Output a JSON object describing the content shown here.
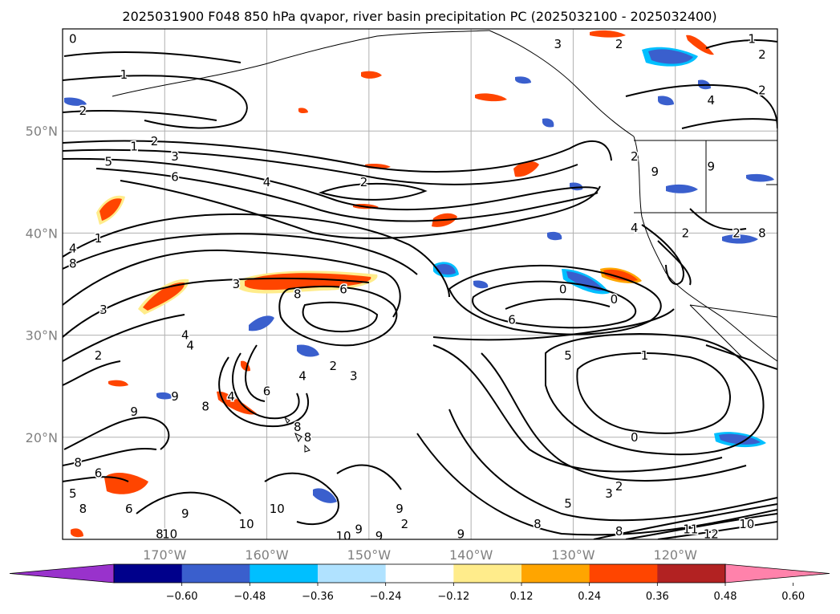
{
  "title": "2025031900 F048 850 hPa qvapor, river basin precipitation PC (2025032100 - 2025032400)",
  "map": {
    "lon_range": [
      -180,
      -110
    ],
    "lat_range": [
      10,
      60
    ],
    "lon_ticks": [
      {
        "value": -170,
        "label": "170°W"
      },
      {
        "value": -160,
        "label": "160°W"
      },
      {
        "value": -150,
        "label": "150°W"
      },
      {
        "value": -140,
        "label": "140°W"
      },
      {
        "value": -130,
        "label": "130°W"
      },
      {
        "value": -120,
        "label": "120°W"
      }
    ],
    "lat_ticks": [
      {
        "value": 20,
        "label": "20°N"
      },
      {
        "value": 30,
        "label": "30°N"
      },
      {
        "value": 40,
        "label": "40°N"
      },
      {
        "value": 50,
        "label": "50°N"
      }
    ],
    "grid": true,
    "coastline_color": "#000000"
  },
  "colorbar": {
    "extend": "both",
    "colors": [
      "#9932cc",
      "#00008b",
      "#3a5fcd",
      "#00bfff",
      "#b0e2ff",
      "#ffffff",
      "#ffec8b",
      "#ffa500",
      "#ff4500",
      "#b22222",
      "#ff82ab"
    ],
    "ticks": [
      "−0.60",
      "−0.48",
      "−0.36",
      "−0.24",
      "−0.12",
      "0.12",
      "0.24",
      "0.36",
      "0.48",
      "0.60"
    ]
  },
  "contour_labels": [
    {
      "lon": -179,
      "lat": 59,
      "text": "0"
    },
    {
      "lon": -174,
      "lat": 55.5,
      "text": "1"
    },
    {
      "lon": -178,
      "lat": 52,
      "text": "2"
    },
    {
      "lon": -173,
      "lat": 48.5,
      "text": "1"
    },
    {
      "lon": -171,
      "lat": 49,
      "text": "2"
    },
    {
      "lon": -175.5,
      "lat": 47,
      "text": "5"
    },
    {
      "lon": -169,
      "lat": 47.5,
      "text": "3"
    },
    {
      "lon": -169,
      "lat": 45.5,
      "text": "6"
    },
    {
      "lon": -160,
      "lat": 45,
      "text": "4"
    },
    {
      "lon": -150.5,
      "lat": 45,
      "text": "2"
    },
    {
      "lon": -179,
      "lat": 38.5,
      "text": "4"
    },
    {
      "lon": -176.5,
      "lat": 39.5,
      "text": "1"
    },
    {
      "lon": -179,
      "lat": 37,
      "text": "8"
    },
    {
      "lon": -176,
      "lat": 32.5,
      "text": "3"
    },
    {
      "lon": -163,
      "lat": 35,
      "text": "3"
    },
    {
      "lon": -157,
      "lat": 34,
      "text": "8"
    },
    {
      "lon": -152.5,
      "lat": 34.5,
      "text": "6"
    },
    {
      "lon": -168,
      "lat": 30,
      "text": "4"
    },
    {
      "lon": -167.5,
      "lat": 29,
      "text": "4"
    },
    {
      "lon": -176.5,
      "lat": 28,
      "text": "2"
    },
    {
      "lon": -136,
      "lat": 31.5,
      "text": "6"
    },
    {
      "lon": -131,
      "lat": 34.5,
      "text": "0"
    },
    {
      "lon": -126,
      "lat": 33.5,
      "text": "0"
    },
    {
      "lon": -130.5,
      "lat": 28,
      "text": "5"
    },
    {
      "lon": -123,
      "lat": 28,
      "text": "1"
    },
    {
      "lon": -153.5,
      "lat": 27,
      "text": "2"
    },
    {
      "lon": -156.5,
      "lat": 26,
      "text": "4"
    },
    {
      "lon": -151.5,
      "lat": 26,
      "text": "3"
    },
    {
      "lon": -169,
      "lat": 24,
      "text": "9"
    },
    {
      "lon": -163.5,
      "lat": 24,
      "text": "4"
    },
    {
      "lon": -160,
      "lat": 24.5,
      "text": "6"
    },
    {
      "lon": -173,
      "lat": 22.5,
      "text": "9"
    },
    {
      "lon": -166,
      "lat": 23,
      "text": "8"
    },
    {
      "lon": -157,
      "lat": 21,
      "text": "8"
    },
    {
      "lon": -156,
      "lat": 20,
      "text": "8"
    },
    {
      "lon": -124,
      "lat": 20,
      "text": "0"
    },
    {
      "lon": -178.5,
      "lat": 17.5,
      "text": "8"
    },
    {
      "lon": -176.5,
      "lat": 16.5,
      "text": "6"
    },
    {
      "lon": -179,
      "lat": 14.5,
      "text": "5"
    },
    {
      "lon": -178,
      "lat": 13,
      "text": "8"
    },
    {
      "lon": -173.5,
      "lat": 13,
      "text": "6"
    },
    {
      "lon": -168,
      "lat": 12.5,
      "text": "9"
    },
    {
      "lon": -159,
      "lat": 13,
      "text": "10"
    },
    {
      "lon": -162,
      "lat": 11.5,
      "text": "10"
    },
    {
      "lon": -151,
      "lat": 11,
      "text": "9"
    },
    {
      "lon": -147,
      "lat": 13,
      "text": "9"
    },
    {
      "lon": -170.5,
      "lat": 10.5,
      "text": "8"
    },
    {
      "lon": -169.5,
      "lat": 10.5,
      "text": "10"
    },
    {
      "lon": -152.5,
      "lat": 10.3,
      "text": "10"
    },
    {
      "lon": -149,
      "lat": 10.3,
      "text": "9"
    },
    {
      "lon": -146.5,
      "lat": 11.5,
      "text": "2"
    },
    {
      "lon": -141,
      "lat": 10.5,
      "text": "9"
    },
    {
      "lon": -130.5,
      "lat": 13.5,
      "text": "5"
    },
    {
      "lon": -126.5,
      "lat": 14.5,
      "text": "3"
    },
    {
      "lon": -125.5,
      "lat": 15.2,
      "text": "2"
    },
    {
      "lon": -125.5,
      "lat": 10.8,
      "text": "8"
    },
    {
      "lon": -118.5,
      "lat": 11,
      "text": "11"
    },
    {
      "lon": -116.5,
      "lat": 10.5,
      "text": "12"
    },
    {
      "lon": -113,
      "lat": 11.5,
      "text": "10"
    },
    {
      "lon": -133.5,
      "lat": 11.5,
      "text": "8"
    },
    {
      "lon": -131.5,
      "lat": 58.5,
      "text": "3"
    },
    {
      "lon": -125.5,
      "lat": 58.5,
      "text": "2"
    },
    {
      "lon": -111.5,
      "lat": 57.5,
      "text": "2"
    },
    {
      "lon": -112.5,
      "lat": 59,
      "text": "1"
    },
    {
      "lon": -111.5,
      "lat": 54,
      "text": "2"
    },
    {
      "lon": -116.5,
      "lat": 53,
      "text": "4"
    },
    {
      "lon": -124,
      "lat": 47.5,
      "text": "2"
    },
    {
      "lon": -122,
      "lat": 46,
      "text": "9"
    },
    {
      "lon": -116.5,
      "lat": 46.5,
      "text": "9"
    },
    {
      "lon": -124,
      "lat": 40.5,
      "text": "4"
    },
    {
      "lon": -119,
      "lat": 40,
      "text": "2"
    },
    {
      "lon": -114,
      "lat": 40,
      "text": "2"
    },
    {
      "lon": -111.5,
      "lat": 40,
      "text": "8"
    }
  ]
}
